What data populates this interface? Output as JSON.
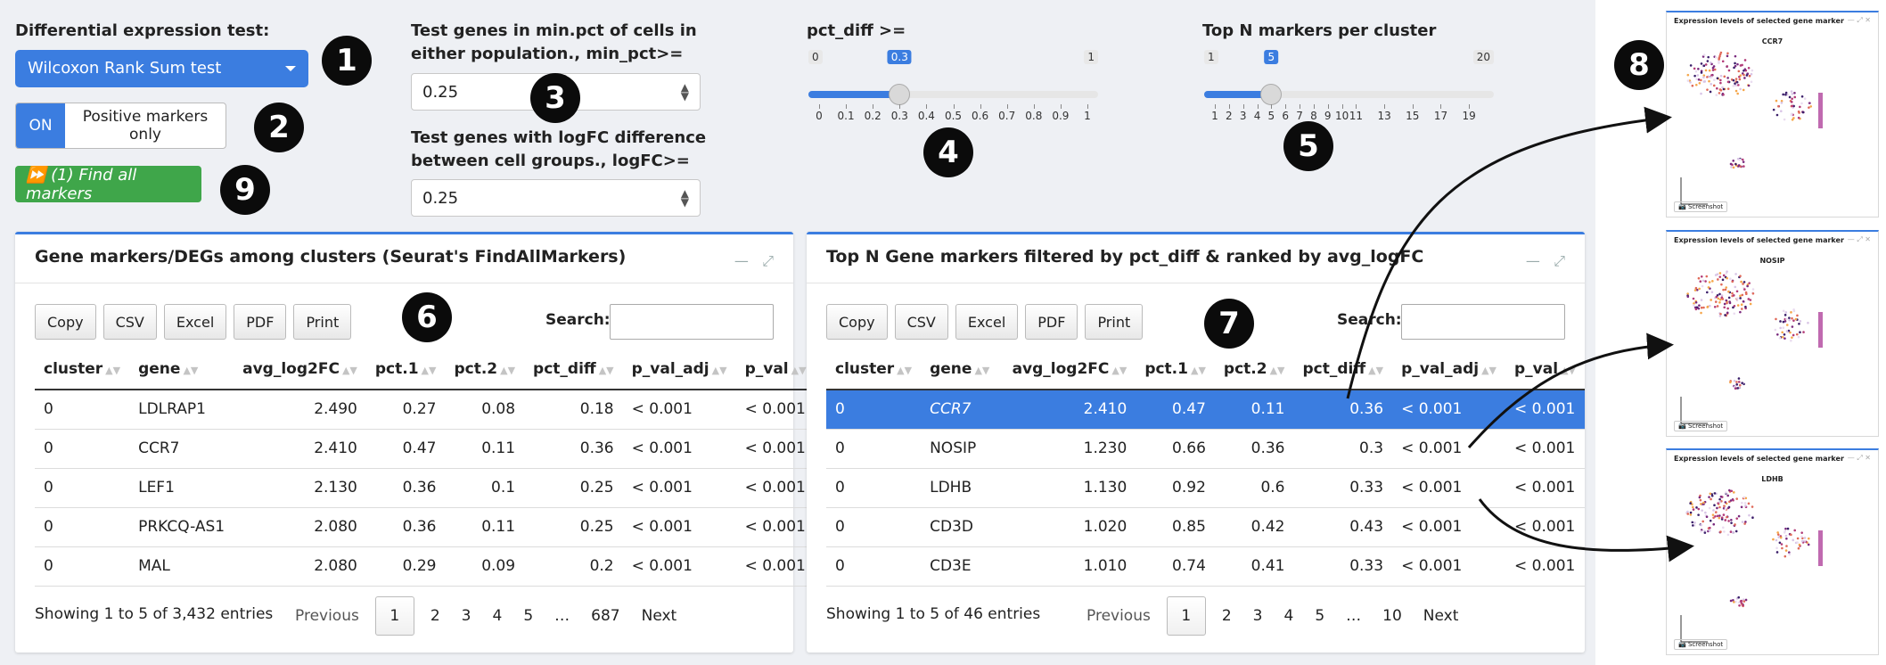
{
  "controls": {
    "test_label": "Differential expression test:",
    "test_selected": "Wilcoxon Rank Sum test",
    "toggle_on": "ON",
    "toggle_label": "Positive markers only",
    "find_button": "⏩ (1) Find all markers",
    "minpct_label": "Test genes in min.pct of cells in either population., min_pct>=",
    "minpct_value": "0.25",
    "logfc_label": "Test genes with logFC difference between cell groups., logFC>=",
    "logfc_value": "0.25"
  },
  "pct_slider": {
    "label": "pct_diff >=",
    "min": "0",
    "max": "1",
    "value": 0.3,
    "value_label": "0.3",
    "ticks": [
      "0",
      "0.1",
      "0.2",
      "0.3",
      "0.4",
      "0.5",
      "0.6",
      "0.7",
      "0.8",
      "0.9",
      "1"
    ]
  },
  "topn_slider": {
    "label": "Top N markers per cluster",
    "min": "1",
    "max": "20",
    "value": 5,
    "value_label": "5",
    "ticks": [
      "1",
      "2",
      "3",
      "4",
      "5",
      "6",
      "7",
      "8",
      "9",
      "10",
      "11",
      "13",
      "15",
      "17",
      "19"
    ]
  },
  "badges": [
    "1",
    "2",
    "3",
    "4",
    "5",
    "6",
    "7",
    "8",
    "9"
  ],
  "left_panel": {
    "title": "Gene markers/DEGs among clusters (Seurat's FindAllMarkers)",
    "buttons": [
      "Copy",
      "CSV",
      "Excel",
      "PDF",
      "Print"
    ],
    "search_label": "Search:",
    "columns": [
      "cluster",
      "gene",
      "avg_log2FC",
      "pct.1",
      "pct.2",
      "pct_diff",
      "p_val_adj",
      "p_val"
    ],
    "rows": [
      [
        "0",
        "LDLRAP1",
        "2.490",
        "0.27",
        "0.08",
        "0.18",
        "< 0.001",
        "< 0.001"
      ],
      [
        "0",
        "CCR7",
        "2.410",
        "0.47",
        "0.11",
        "0.36",
        "< 0.001",
        "< 0.001"
      ],
      [
        "0",
        "LEF1",
        "2.130",
        "0.36",
        "0.1",
        "0.25",
        "< 0.001",
        "< 0.001"
      ],
      [
        "0",
        "PRKCQ-AS1",
        "2.080",
        "0.36",
        "0.11",
        "0.25",
        "< 0.001",
        "< 0.001"
      ],
      [
        "0",
        "MAL",
        "2.080",
        "0.29",
        "0.09",
        "0.2",
        "< 0.001",
        "< 0.001"
      ]
    ],
    "info": "Showing 1 to 5 of 3,432 entries",
    "pager": {
      "prev": "Previous",
      "pages": [
        "1",
        "2",
        "3",
        "4",
        "5",
        "…",
        "687"
      ],
      "next": "Next"
    }
  },
  "right_panel": {
    "title": "Top N Gene markers filtered by pct_diff & ranked by avg_logFC",
    "buttons": [
      "Copy",
      "CSV",
      "Excel",
      "PDF",
      "Print"
    ],
    "search_label": "Search:",
    "columns": [
      "cluster",
      "gene",
      "avg_log2FC",
      "pct.1",
      "pct.2",
      "pct_diff",
      "p_val_adj",
      "p_val"
    ],
    "rows": [
      [
        "0",
        "CCR7",
        "2.410",
        "0.47",
        "0.11",
        "0.36",
        "< 0.001",
        "< 0.001"
      ],
      [
        "0",
        "NOSIP",
        "1.230",
        "0.66",
        "0.36",
        "0.3",
        "< 0.001",
        "< 0.001"
      ],
      [
        "0",
        "LDHB",
        "1.130",
        "0.92",
        "0.6",
        "0.33",
        "< 0.001",
        "< 0.001"
      ],
      [
        "0",
        "CD3D",
        "1.020",
        "0.85",
        "0.42",
        "0.43",
        "< 0.001",
        "< 0.001"
      ],
      [
        "0",
        "CD3E",
        "1.010",
        "0.74",
        "0.41",
        "0.33",
        "< 0.001",
        "< 0.001"
      ]
    ],
    "selected_row": 0,
    "info": "Showing 1 to 5 of 46 entries",
    "pager": {
      "prev": "Previous",
      "pages": [
        "1",
        "2",
        "3",
        "4",
        "5",
        "…",
        "10"
      ],
      "next": "Next"
    }
  },
  "thumbnails": [
    {
      "title": "Expression levels of selected gene marker",
      "gene": "CCR7",
      "screenshot": "📷 Screenshot"
    },
    {
      "title": "Expression levels of selected gene marker",
      "gene": "NOSIP",
      "screenshot": "📷 Screenshot"
    },
    {
      "title": "Expression levels of selected gene marker",
      "gene": "LDHB",
      "screenshot": "📷 Screenshot"
    }
  ],
  "colors": {
    "accent": "#3b7de0",
    "green": "#3fa64a",
    "badge": "#0b0b0b"
  }
}
